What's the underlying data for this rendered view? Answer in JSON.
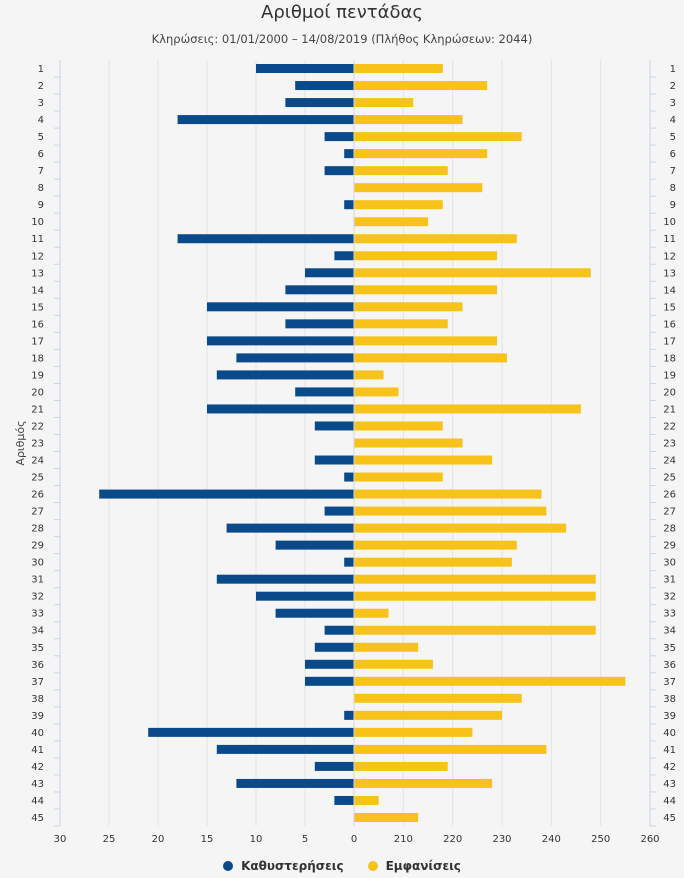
{
  "chart_data": {
    "type": "bar",
    "orientation": "horizontal-diverging",
    "title": "Αριθμοί πεντάδας",
    "subtitle": "Κληρώσεις: 01/01/2000 – 14/08/2019 (Πλήθος Κληρώσεων: 2044)",
    "ylabel": "Αριθμός",
    "categories": [
      "1",
      "2",
      "3",
      "4",
      "5",
      "6",
      "7",
      "8",
      "9",
      "10",
      "11",
      "12",
      "13",
      "14",
      "15",
      "16",
      "17",
      "18",
      "19",
      "20",
      "21",
      "22",
      "23",
      "24",
      "25",
      "26",
      "27",
      "28",
      "29",
      "30",
      "31",
      "32",
      "33",
      "34",
      "35",
      "36",
      "37",
      "38",
      "39",
      "40",
      "41",
      "42",
      "43",
      "44",
      "45"
    ],
    "left_axis": {
      "ticks": [
        "30",
        "25",
        "20",
        "15",
        "10",
        "5",
        "0"
      ],
      "range": [
        30,
        0
      ]
    },
    "right_axis": {
      "ticks": [
        "210",
        "220",
        "230",
        "240",
        "250",
        "260"
      ],
      "range": [
        200,
        260
      ]
    },
    "series": [
      {
        "name": "Καθυστερήσεις",
        "color": "#0a4a8a",
        "values": [
          10,
          6,
          7,
          18,
          3,
          1,
          3,
          0,
          1,
          0,
          18,
          2,
          5,
          7,
          15,
          7,
          15,
          12,
          14,
          6,
          15,
          4,
          0,
          4,
          1,
          26,
          3,
          13,
          8,
          1,
          14,
          10,
          8,
          3,
          4,
          5,
          5,
          0,
          1,
          21,
          14,
          4,
          12,
          2,
          0
        ]
      },
      {
        "name": "Εμφανίσεις",
        "color": "#f7c31a",
        "values": [
          218,
          227,
          212,
          222,
          234,
          227,
          219,
          226,
          218,
          215,
          233,
          229,
          248,
          229,
          222,
          219,
          229,
          231,
          206,
          209,
          246,
          218,
          222,
          228,
          218,
          238,
          239,
          243,
          233,
          232,
          249,
          249,
          207,
          249,
          213,
          216,
          255,
          234,
          230,
          224,
          239,
          219,
          228,
          205,
          213
        ]
      }
    ],
    "grid": true,
    "legend_position": "bottom-center"
  }
}
